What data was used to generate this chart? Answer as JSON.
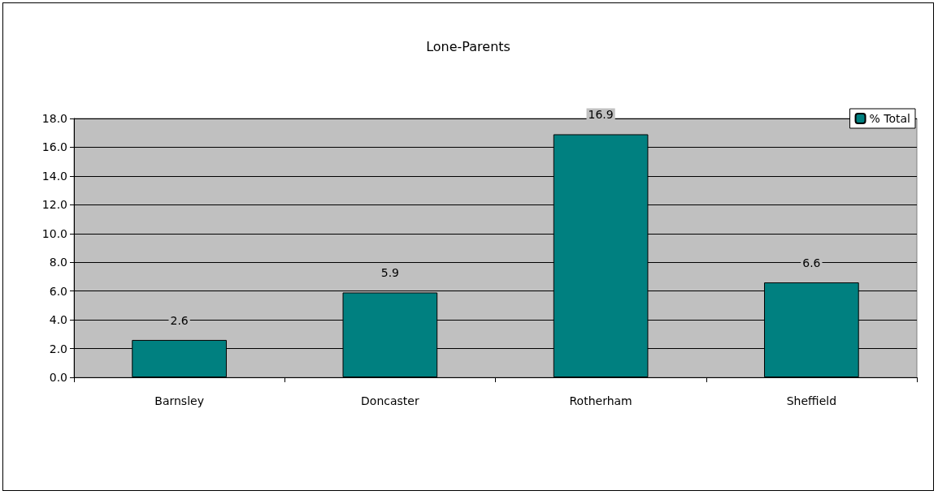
{
  "chart_data": {
    "type": "bar",
    "title": "Lone-Parents",
    "categories": [
      "Barnsley",
      "Doncaster",
      "Rotherham",
      "Sheffield"
    ],
    "series": [
      {
        "name": "% Total",
        "color": "#008080",
        "values": [
          2.6,
          5.9,
          16.9,
          6.6
        ]
      }
    ],
    "ylim": [
      0,
      18
    ],
    "yticks": [
      {
        "value": 0,
        "label": "0.0"
      },
      {
        "value": 2,
        "label": "2.0"
      },
      {
        "value": 4,
        "label": "4.0"
      },
      {
        "value": 6,
        "label": "6.0"
      },
      {
        "value": 8,
        "label": "8.0"
      },
      {
        "value": 10,
        "label": "10.0"
      },
      {
        "value": 12,
        "label": "12.0"
      },
      {
        "value": 14,
        "label": "14.0"
      },
      {
        "value": 16,
        "label": "16.0"
      },
      {
        "value": 18,
        "label": "18.0"
      }
    ],
    "grid": "y",
    "legend": "top right",
    "data_labels": true
  }
}
